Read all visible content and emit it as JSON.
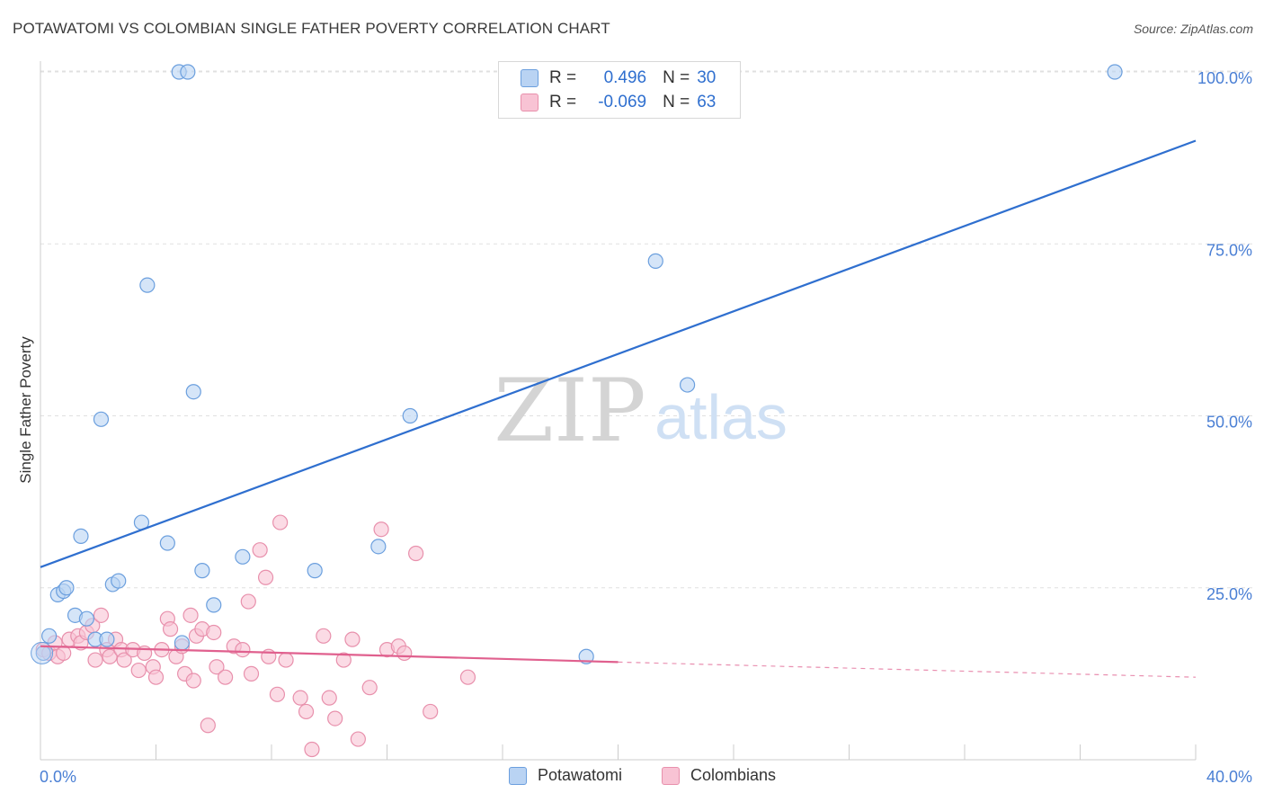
{
  "header": {
    "title": "POTAWATOMI VS COLOMBIAN SINGLE FATHER POVERTY CORRELATION CHART",
    "source": "Source: ZipAtlas.com"
  },
  "watermark": {
    "zip": "ZIP",
    "atlas": "atlas"
  },
  "legend_top": {
    "rows": [
      {
        "r_label": "R =",
        "r_value": "0.496",
        "n_label": "N =",
        "n_value": "30"
      },
      {
        "r_label": "R =",
        "r_value": "-0.069",
        "n_label": "N =",
        "n_value": "63"
      }
    ]
  },
  "legend_bottom": {
    "items": [
      "Potawatomi",
      "Colombians"
    ]
  },
  "colors": {
    "blue_fill": "#b9d3f3",
    "blue_stroke": "#6b9fde",
    "blue_line": "#2f6fcf",
    "pink_fill": "#f8c3d4",
    "pink_stroke": "#e890ac",
    "pink_line": "#e0608e",
    "tick_text": "#4a7fd4",
    "grid": "#e0e0e0"
  },
  "chart_data": {
    "type": "scatter",
    "title": "POTAWATOMI VS COLOMBIAN SINGLE FATHER POVERTY CORRELATION CHART",
    "xlabel": "",
    "ylabel": "Single Father Poverty",
    "xlim": [
      0,
      40
    ],
    "ylim": [
      0,
      105
    ],
    "x_tick_labels": [
      "0.0%",
      "40.0%"
    ],
    "y_ticks": [
      25,
      50,
      75,
      100
    ],
    "y_tick_labels": [
      "25.0%",
      "50.0%",
      "75.0%",
      "100.0%"
    ],
    "grid": true,
    "legend_position": "top-center",
    "series": [
      {
        "name": "Potawatomi",
        "R": 0.496,
        "N": 30,
        "points": [
          [
            0.1,
            15.5
          ],
          [
            0.3,
            18
          ],
          [
            0.6,
            24
          ],
          [
            0.8,
            24.5
          ],
          [
            0.9,
            25
          ],
          [
            1.2,
            21
          ],
          [
            1.4,
            32.5
          ],
          [
            1.6,
            20.5
          ],
          [
            1.9,
            17.5
          ],
          [
            2.1,
            49.5
          ],
          [
            2.3,
            17.5
          ],
          [
            2.5,
            25.5
          ],
          [
            2.7,
            26
          ],
          [
            3.5,
            34.5
          ],
          [
            3.7,
            69
          ],
          [
            4.4,
            31.5
          ],
          [
            4.8,
            100
          ],
          [
            5.1,
            100
          ],
          [
            5.3,
            53.5
          ],
          [
            5.6,
            27.5
          ],
          [
            6.0,
            22.5
          ],
          [
            7.0,
            29.5
          ],
          [
            4.9,
            17
          ],
          [
            9.5,
            27.5
          ],
          [
            11.7,
            31
          ],
          [
            12.8,
            50
          ],
          [
            18.9,
            15
          ],
          [
            21.3,
            72.5
          ],
          [
            22.4,
            54.5
          ],
          [
            37.2,
            100
          ]
        ],
        "trend": {
          "x": [
            0,
            40
          ],
          "y": [
            28,
            90
          ]
        }
      },
      {
        "name": "Colombians",
        "R": -0.069,
        "N": 63,
        "points": [
          [
            0.1,
            16
          ],
          [
            0.3,
            15.5
          ],
          [
            0.5,
            17
          ],
          [
            0.6,
            15
          ],
          [
            0.8,
            15.5
          ],
          [
            1.0,
            17.5
          ],
          [
            1.3,
            18
          ],
          [
            1.4,
            17
          ],
          [
            1.6,
            18.5
          ],
          [
            1.8,
            19.5
          ],
          [
            1.9,
            14.5
          ],
          [
            2.1,
            21
          ],
          [
            2.3,
            16
          ],
          [
            2.4,
            15
          ],
          [
            2.6,
            17.5
          ],
          [
            2.8,
            16
          ],
          [
            2.9,
            14.5
          ],
          [
            3.2,
            16
          ],
          [
            3.4,
            13
          ],
          [
            3.6,
            15.5
          ],
          [
            3.9,
            13.5
          ],
          [
            4.0,
            12
          ],
          [
            4.2,
            16
          ],
          [
            4.4,
            20.5
          ],
          [
            4.5,
            19
          ],
          [
            4.7,
            15
          ],
          [
            4.9,
            16.5
          ],
          [
            5.0,
            12.5
          ],
          [
            5.2,
            21
          ],
          [
            5.3,
            11.5
          ],
          [
            5.4,
            18
          ],
          [
            5.6,
            19
          ],
          [
            5.8,
            5
          ],
          [
            6.0,
            18.5
          ],
          [
            6.1,
            13.5
          ],
          [
            6.4,
            12
          ],
          [
            6.7,
            16.5
          ],
          [
            7.0,
            16
          ],
          [
            7.2,
            23
          ],
          [
            7.3,
            12.5
          ],
          [
            7.6,
            30.5
          ],
          [
            7.8,
            26.5
          ],
          [
            7.9,
            15
          ],
          [
            8.2,
            9.5
          ],
          [
            8.3,
            34.5
          ],
          [
            8.5,
            14.5
          ],
          [
            9.0,
            9
          ],
          [
            9.2,
            7
          ],
          [
            9.4,
            1.5
          ],
          [
            9.8,
            18
          ],
          [
            10.0,
            9
          ],
          [
            10.2,
            6
          ],
          [
            10.5,
            14.5
          ],
          [
            10.8,
            17.5
          ],
          [
            11.0,
            3
          ],
          [
            11.4,
            10.5
          ],
          [
            11.8,
            33.5
          ],
          [
            12.0,
            16
          ],
          [
            12.4,
            16.5
          ],
          [
            12.6,
            15.5
          ],
          [
            13.0,
            30
          ],
          [
            13.5,
            7
          ],
          [
            14.8,
            12
          ]
        ],
        "trend": {
          "x": [
            0,
            20
          ],
          "y": [
            16.5,
            14.2
          ]
        },
        "trend_dashed": {
          "x": [
            20,
            40
          ],
          "y": [
            14.2,
            12
          ]
        }
      }
    ]
  }
}
